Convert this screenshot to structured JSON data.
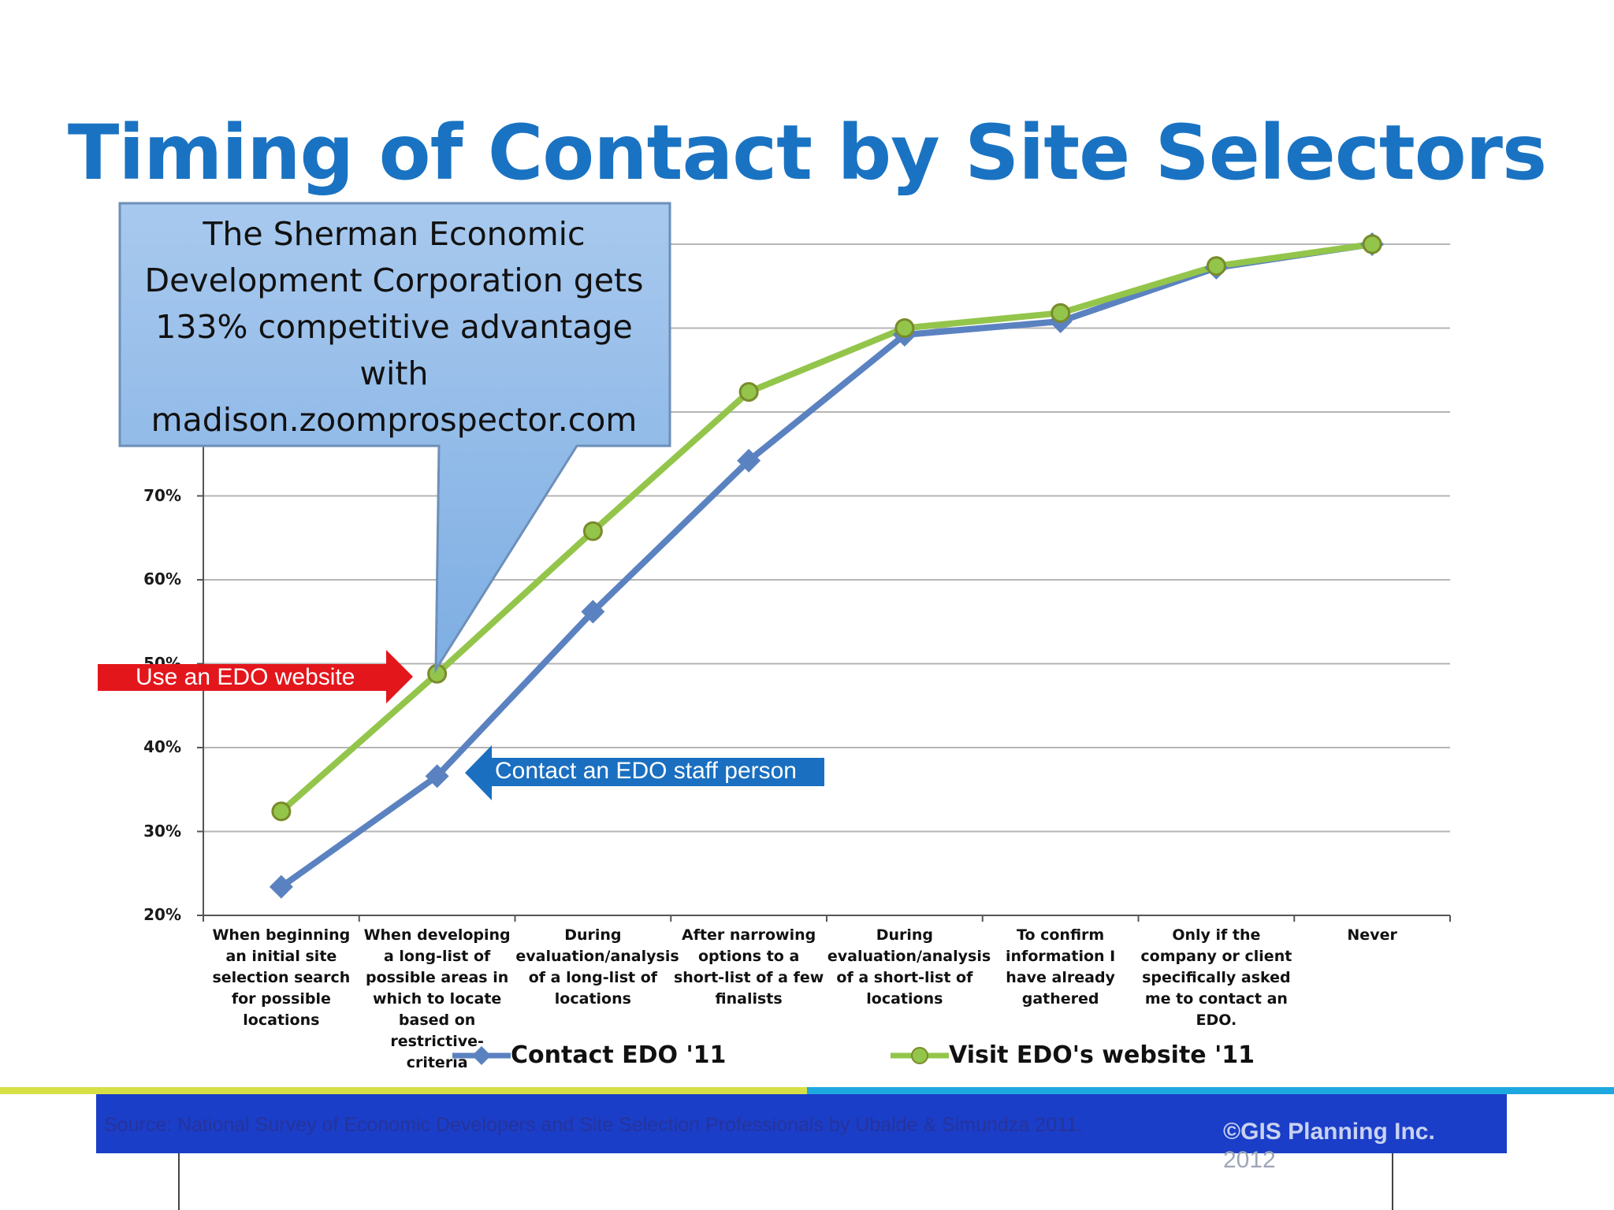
{
  "slide": {
    "title": "Timing of Contact by Site Selectors"
  },
  "callout": {
    "text": "The Sherman Economic\nDevelopment Corporation gets\n133% competitive advantage\nwith\nmadison.zoomprospector.com",
    "fill_color": "#8fb8e6"
  },
  "annotations": {
    "red_arrow": "Use an EDO website",
    "blue_arrow": "Contact an EDO staff person",
    "red_color": "#e3161c",
    "blue_color": "#1a6fc0"
  },
  "chart_data": {
    "type": "line",
    "categories": [
      "When beginning an initial site selection search for possible locations",
      "When developing a long-list of possible areas in which to locate based on restrictive-criteria",
      "During evaluation/analysis of a long-list of locations",
      "After narrowing options to a short-list of a few finalists",
      "During evaluation/analysis of a short-list of locations",
      "To confirm information I have already gathered",
      "Only if the company or client specifically asked me to contact an EDO.",
      "Never"
    ],
    "series": [
      {
        "name": "Contact EDO '11",
        "values": [
          23.4,
          36.6,
          56.2,
          74.2,
          89.2,
          90.8,
          97.2,
          100
        ],
        "color": "#5b82c0",
        "marker": "diamond"
      },
      {
        "name": "Visit EDO's website '11",
        "values": [
          32.4,
          48.8,
          65.8,
          82.4,
          90.0,
          91.8,
          97.4,
          100
        ],
        "color": "#93c54b",
        "marker": "circle"
      }
    ],
    "y_ticks": [
      "20%",
      "30%",
      "40%",
      "50%",
      "60%",
      "70%"
    ],
    "ylim": [
      20,
      100
    ],
    "grid": true,
    "legend": "bottom"
  },
  "footer": {
    "source": "Source: National Survey of Economic Developers and Site Selection  Professionals by Ubalde & Simundza  2011.",
    "copyright": "©GIS Planning Inc.",
    "year": "2012"
  }
}
